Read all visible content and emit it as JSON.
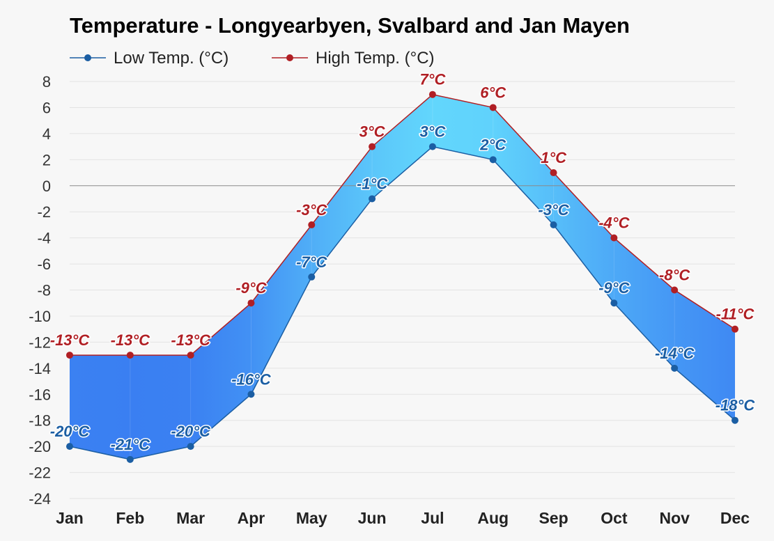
{
  "chart_data": {
    "type": "area",
    "title": "Temperature - Longyearbyen, Svalbard and Jan Mayen",
    "categories": [
      "Jan",
      "Feb",
      "Mar",
      "Apr",
      "May",
      "Jun",
      "Jul",
      "Aug",
      "Sep",
      "Oct",
      "Nov",
      "Dec"
    ],
    "series": [
      {
        "name": "Low Temp. (°C)",
        "color": "#1b5ea3",
        "values": [
          -20,
          -21,
          -20,
          -16,
          -7,
          -1,
          3,
          2,
          -3,
          -9,
          -14,
          -18
        ],
        "labels": [
          "-20°C",
          "-21°C",
          "-20°C",
          "-16°C",
          "-7°C",
          "-1°C",
          "3°C",
          "2°C",
          "-3°C",
          "-9°C",
          "-14°C",
          "-18°C"
        ]
      },
      {
        "name": "High Temp. (°C)",
        "color": "#b01f24",
        "values": [
          -13,
          -13,
          -13,
          -9,
          -3,
          3,
          7,
          6,
          1,
          -4,
          -8,
          -11
        ],
        "labels": [
          "-13°C",
          "-13°C",
          "-13°C",
          "-9°C",
          "-3°C",
          "3°C",
          "7°C",
          "6°C",
          "1°C",
          "-4°C",
          "-8°C",
          "-11°C"
        ]
      }
    ],
    "yticks": [
      "8",
      "6",
      "4",
      "2",
      "0",
      "-2",
      "-4",
      "-6",
      "-8",
      "-10",
      "-12",
      "-14",
      "-16",
      "-18",
      "-20",
      "-22",
      "-24"
    ],
    "ylim": [
      -24,
      8
    ],
    "grid": true,
    "legend_position": "top-left",
    "band_colors": {
      "cold": "#3a7ff2",
      "warm": "#62d6fc"
    }
  }
}
